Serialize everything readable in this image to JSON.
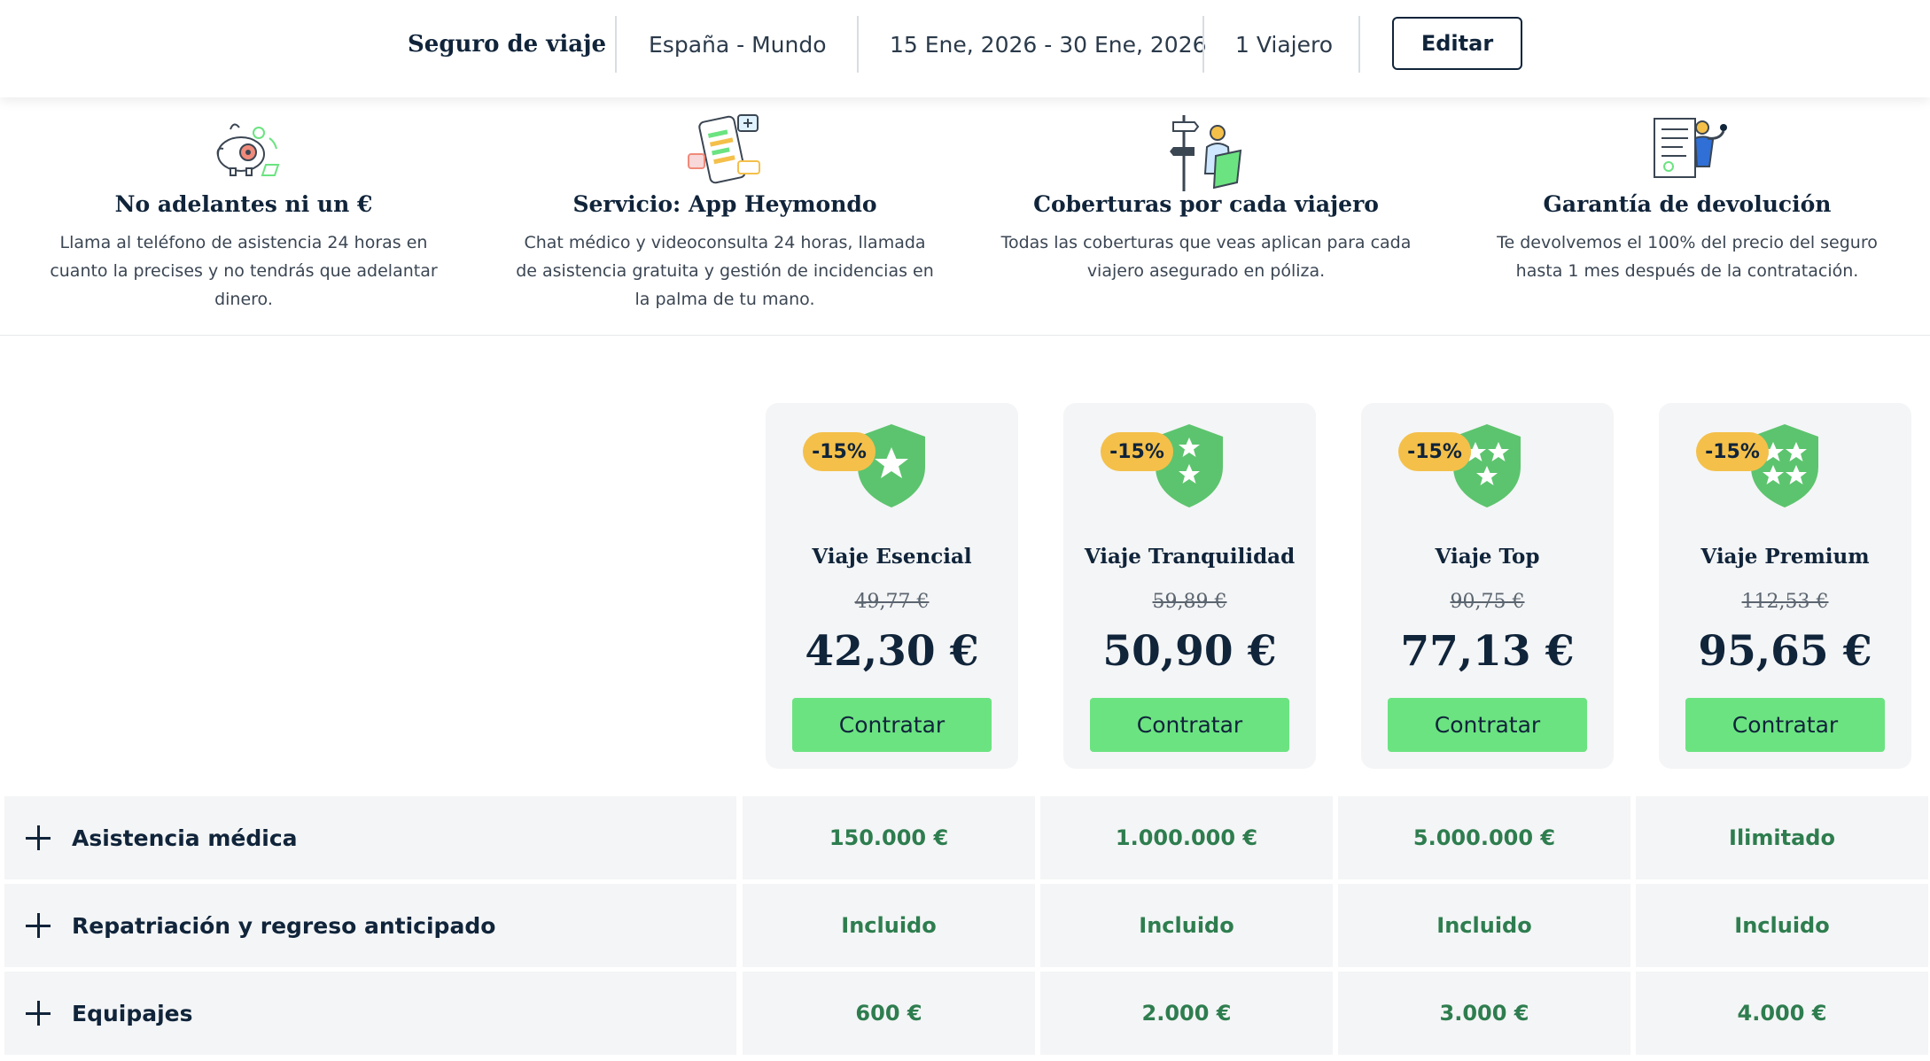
{
  "header": {
    "brand": "Seguro de viaje",
    "route": "España - Mundo",
    "dates": "15 Ene, 2026 - 30 Ene, 2026",
    "travelers": "1  Viajero",
    "edit_label": "Editar"
  },
  "features": [
    {
      "icon": "piggy-bank-icon",
      "title": "No adelantes ni un €",
      "desc": "Llama al teléfono de asistencia 24 horas en cuanto la precises y no tendrás que adelantar dinero."
    },
    {
      "icon": "mobile-app-icon",
      "title": "Servicio: App Heymondo",
      "desc": "Chat médico y videoconsulta 24 horas, llamada de asistencia gratuita y gestión de incidencias en la palma de tu mano."
    },
    {
      "icon": "traveler-signpost-icon",
      "title": "Coberturas por cada viajero",
      "desc": "Todas las coberturas que veas aplican para cada viajero asegurado en póliza."
    },
    {
      "icon": "refund-document-icon",
      "title": "Garantía de devolución",
      "desc": "Te devolvemos el 100% del precio del seguro hasta 1 mes después de la contratación."
    }
  ],
  "plans": [
    {
      "name": "Viaje Esencial",
      "discount": "-15%",
      "old_price": "49,77 €",
      "price": "42,30 €",
      "stars": 1,
      "cta": "Contratar"
    },
    {
      "name": "Viaje Tranquilidad",
      "discount": "-15%",
      "old_price": "59,89 €",
      "price": "50,90 €",
      "stars": 2,
      "cta": "Contratar"
    },
    {
      "name": "Viaje Top",
      "discount": "-15%",
      "old_price": "90,75 €",
      "price": "77,13 €",
      "stars": 3,
      "cta": "Contratar"
    },
    {
      "name": "Viaje Premium",
      "discount": "-15%",
      "old_price": "112,53 €",
      "price": "95,65 €",
      "stars": 4,
      "cta": "Contratar"
    }
  ],
  "coverages": [
    {
      "label": "Asistencia médica",
      "values": [
        "150.000 €",
        "1.000.000 €",
        "5.000.000 €",
        "Ilimitado"
      ]
    },
    {
      "label": "Repatriación y regreso anticipado",
      "values": [
        "Incluido",
        "Incluido",
        "Incluido",
        "Incluido"
      ]
    },
    {
      "label": "Equipajes",
      "values": [
        "600 €",
        "2.000 €",
        "3.000 €",
        "4.000 €"
      ]
    }
  ],
  "colors": {
    "accent_green": "#6be381",
    "shield_green": "#5cc46e",
    "badge_yellow": "#f4c04a",
    "value_green": "#2e7d4f",
    "navy": "#10243a"
  }
}
